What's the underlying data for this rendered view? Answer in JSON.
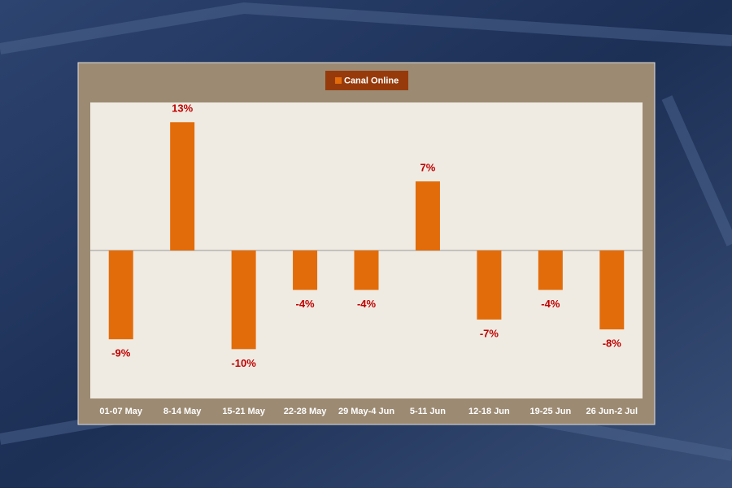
{
  "chart_data": {
    "type": "bar",
    "series": [
      {
        "name": "Canal Online",
        "color": "#e36c0a",
        "values": [
          -9,
          13,
          -10,
          -4,
          -4,
          7,
          -7,
          -4,
          -8
        ],
        "value_labels": [
          "-9%",
          "13%",
          "-10%",
          "-4%",
          "-4%",
          "7%",
          "-7%",
          "-4%",
          "-8%"
        ]
      }
    ],
    "categories": [
      "01-07 May",
      "8-14 May",
      "15-21 May",
      "22-28 May",
      "29 May-4  Jun",
      "5-11 Jun",
      "12-18 Jun",
      "19-25 Jun",
      "26 Jun-2 Jul"
    ],
    "ylim": [
      -15,
      15
    ]
  }
}
